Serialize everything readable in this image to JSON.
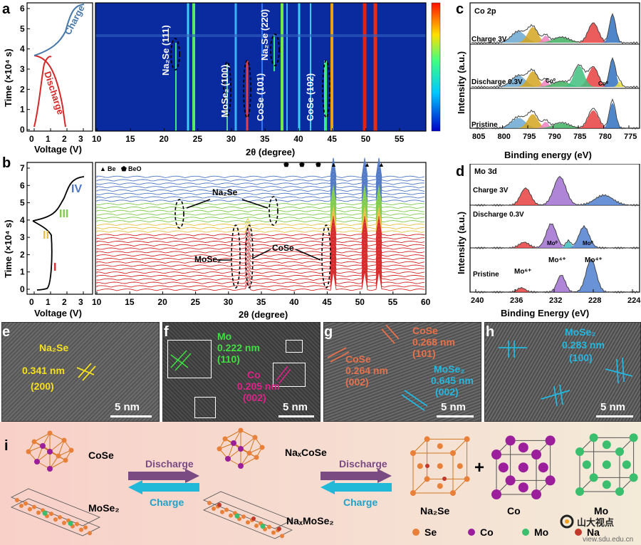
{
  "panels": {
    "a": "a",
    "b": "b",
    "c": "c",
    "d": "d",
    "e": "e",
    "f": "f",
    "g": "g",
    "h": "h",
    "i": "i"
  },
  "panel_a": {
    "ylabel": "Time (×10⁴ s)",
    "xlabel_left": "Voltage (V)",
    "xlabel_right": "2θ (degree)",
    "y_ticks": [
      "0",
      "1",
      "2",
      "3",
      "4",
      "5",
      "6"
    ],
    "v_ticks": [
      "0",
      "1",
      "2",
      "3"
    ],
    "theta_ticks": [
      "10",
      "15",
      "20",
      "25",
      "30",
      "35",
      "40",
      "45",
      "50",
      "55"
    ],
    "charge": "Charge",
    "discharge": "Discharge",
    "peaks": [
      {
        "label": "Na₂Se (111)"
      },
      {
        "label": "MoSe₂ (100)"
      },
      {
        "label": "CoSe (101)"
      },
      {
        "label": "Na₂Se (220)"
      },
      {
        "label": "CoSe (102)"
      }
    ]
  },
  "panel_b": {
    "ylabel": "Time (×10⁴ s)",
    "xlabel_left": "Voltage (V)",
    "xlabel_right": "2θ (degree)",
    "y_ticks": [
      "0",
      "1",
      "2",
      "3",
      "4",
      "5",
      "6",
      "7"
    ],
    "v_ticks": [
      "0",
      "1",
      "2",
      "3"
    ],
    "theta_ticks": [
      "10",
      "15",
      "20",
      "25",
      "30",
      "35",
      "40",
      "45",
      "50",
      "55",
      "60"
    ],
    "stages": [
      "I",
      "II",
      "III",
      "IV"
    ],
    "legend_be": "Be",
    "legend_beo": "BeO",
    "ann_na2se": "Na₂Se",
    "ann_mose2": "MoSe₂",
    "ann_cose": "CoSe"
  },
  "panel_c": {
    "title": "Co 2p",
    "rows": [
      "Charge 3V",
      "Discharge 0.3V",
      "Pristine"
    ],
    "ylabel": "Intensity (a.u.)",
    "xlabel": "Binding energy (eV)",
    "x_ticks": [
      "805",
      "800",
      "795",
      "790",
      "785",
      "780",
      "775"
    ],
    "co0_a": "Co⁰",
    "co0_b": "Co⁰"
  },
  "panel_d": {
    "title": "Mo 3d",
    "rows": [
      "Charge 3V",
      "Discharge 0.3V",
      "Pristine"
    ],
    "ylabel": "Intensity (a.u.)",
    "xlabel": "Binding Energy (eV)",
    "x_ticks": [
      "240",
      "236",
      "232",
      "228",
      "224"
    ],
    "mo0_a": "Mo⁰",
    "mo0_b": "Mo⁰",
    "mo6": "Mo⁶⁺",
    "mo4_a": "Mo⁴⁺",
    "mo4_b": "Mo⁴⁺"
  },
  "tem": {
    "scale": "5 nm",
    "e": {
      "phase": "Na₂Se",
      "d": "0.341 nm",
      "hkl": "(200)"
    },
    "f": {
      "mo": "Mo",
      "mo_d": "0.222 nm",
      "mo_hkl": "(110)",
      "co": "Co",
      "co_d": "0.205 nm",
      "co_hkl": "(002)"
    },
    "g": {
      "c1": "CoSe",
      "c1_d": "0.268 nm",
      "c1_hkl": "(101)",
      "c2": "CoSe",
      "c2_d": "0.264 nm",
      "c2_hkl": "(002)",
      "m": "MoSe₂",
      "m_d": "0.645 nm",
      "m_hkl": "(002)"
    },
    "h": {
      "phase": "MoSe₂",
      "d": "0.283 nm",
      "hkl": "(100)"
    }
  },
  "panel_i": {
    "cose": "CoSe",
    "mose2": "MoSe₂",
    "naxcose": "NaₓCoSe",
    "naxmose2": "NaₓMoSe₂",
    "discharge": "Discharge",
    "charge": "Charge",
    "na2se": "Na₂Se",
    "co": "Co",
    "mo": "Mo",
    "plus": "+",
    "legend": [
      "Se",
      "Co",
      "Mo",
      "Na"
    ],
    "colors": {
      "se": "#e8803a",
      "co": "#9b1f9b",
      "mo": "#3bbf6f",
      "na": "#c0392b"
    }
  },
  "watermark": {
    "cn": "山大视点",
    "url": "view.sdu.edu.cn"
  }
}
